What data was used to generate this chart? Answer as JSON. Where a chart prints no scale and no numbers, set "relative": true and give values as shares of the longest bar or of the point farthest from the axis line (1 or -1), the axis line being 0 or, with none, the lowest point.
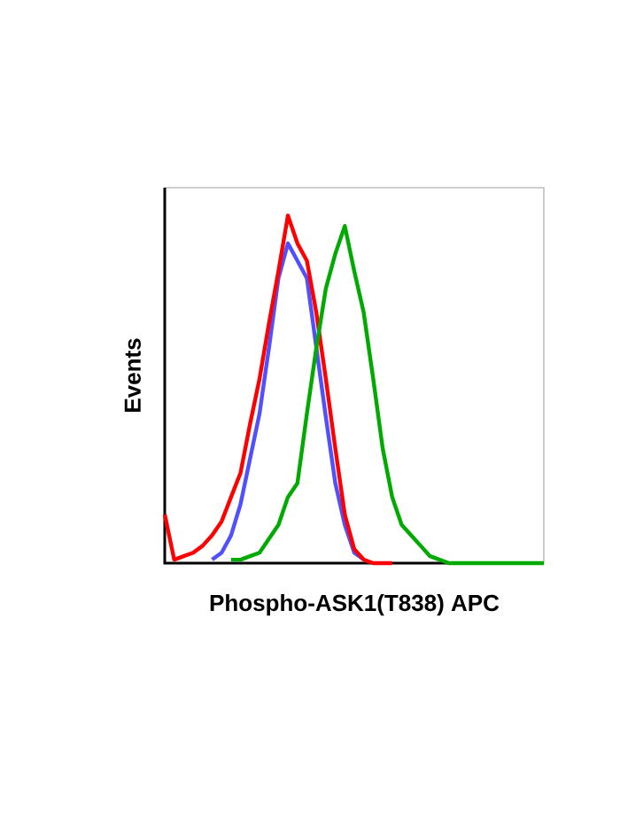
{
  "chart_data": {
    "type": "line",
    "relative": true,
    "xlabel": "Phospho-ASK1(T838) APC",
    "ylabel": "Events",
    "categories": [
      null,
      null,
      null,
      null,
      null,
      null,
      null,
      null,
      null,
      null,
      null,
      null,
      null,
      null,
      null,
      null,
      null,
      null,
      null,
      null,
      null,
      null,
      null,
      null,
      null,
      null,
      null,
      null,
      null,
      null,
      null,
      null,
      null,
      null,
      null,
      null,
      null,
      null,
      null,
      null,
      null
    ],
    "series": [
      {
        "color": "#5050ff",
        "values": [
          null,
          null,
          null,
          null,
          null,
          0.01,
          0.03,
          0.08,
          0.17,
          0.3,
          0.43,
          0.62,
          0.82,
          0.92,
          0.87,
          0.82,
          0.62,
          0.42,
          0.23,
          0.11,
          0.03,
          0.01,
          null,
          null,
          null,
          null,
          null,
          null,
          null,
          null,
          null,
          null,
          null,
          null,
          null,
          null,
          null,
          null,
          null,
          null,
          null
        ]
      },
      {
        "color": "#ff0000",
        "values": [
          0.14,
          0.01,
          0.02,
          0.03,
          0.05,
          0.08,
          0.12,
          0.19,
          0.26,
          0.4,
          0.53,
          0.69,
          0.84,
          1,
          0.92,
          0.87,
          0.72,
          0.53,
          0.33,
          0.14,
          0.04,
          0.01,
          0,
          0,
          0,
          null,
          null,
          null,
          null,
          null,
          null,
          null,
          null,
          null,
          null,
          null,
          null,
          null,
          null,
          null,
          null
        ]
      },
      {
        "color": "#00aa00",
        "values": [
          null,
          null,
          null,
          null,
          null,
          null,
          null,
          0.01,
          0.01,
          0.02,
          0.03,
          0.07,
          0.11,
          0.19,
          0.23,
          0.43,
          0.62,
          0.79,
          0.89,
          0.97,
          0.84,
          0.72,
          0.53,
          0.33,
          0.19,
          0.11,
          0.08,
          0.05,
          0.02,
          0.01,
          0,
          0,
          0,
          0,
          0,
          0,
          0,
          0,
          0,
          0,
          0
        ]
      }
    ],
    "marker": "none",
    "line_style": "solid"
  }
}
